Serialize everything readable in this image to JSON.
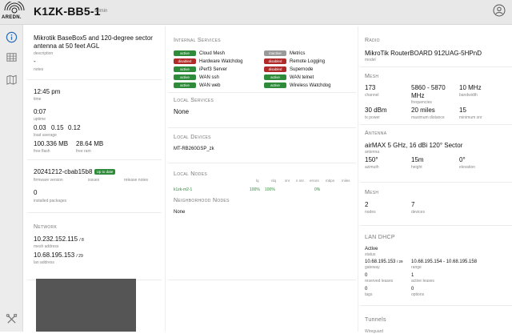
{
  "header": {
    "logo_text": "AREDN.",
    "node_name": "K1ZK-BB5-1",
    "user_role": "admin"
  },
  "sidebar": {
    "icons": [
      "info-icon",
      "grid-icon",
      "map-icon",
      "tools-icon"
    ]
  },
  "general": {
    "description": "Mikrotik BaseBox5 and 120-degree sector antenna at 50 feet AGL",
    "description_label": "description",
    "notes": "-",
    "notes_label": "notes",
    "time": "12:45 pm",
    "time_label": "time",
    "uptime": "0:07",
    "uptime_label": "uptime",
    "load1": "0.03",
    "load5": "0.15",
    "load15": "0.12",
    "load_label": "load average",
    "free_flash": "100.336 MB",
    "free_flash_label": "free flash",
    "free_ram": "28.64 MB",
    "free_ram_label": "free ram",
    "firmware": "20241212-cbab15b8",
    "firmware_badge": "Up to date",
    "firmware_label": "firmware version",
    "issues_label": "issues",
    "release_notes_label": "release notes",
    "packages": "0",
    "packages_label": "installed packages"
  },
  "network": {
    "title": "Network",
    "mesh_ip": "10.232.152.115",
    "mesh_mask": "/ 8",
    "mesh_label": "mesh address",
    "lan_ip": "10.68.195.153",
    "lan_mask": "/ 29",
    "lan_label": "lan address"
  },
  "internal_services": {
    "title": "Internal Services",
    "left": [
      {
        "status": "active",
        "name": "Cloud Mesh"
      },
      {
        "status": "disabled",
        "name": "Hardware Watchdog"
      },
      {
        "status": "active",
        "name": "iPerf3 Server"
      },
      {
        "status": "active",
        "name": "WAN ssh"
      },
      {
        "status": "active",
        "name": "WAN web"
      }
    ],
    "right": [
      {
        "status": "inactive",
        "name": "Metrics"
      },
      {
        "status": "disabled",
        "name": "Remote Logging"
      },
      {
        "status": "disabled",
        "name": "Supernode"
      },
      {
        "status": "active",
        "name": "WAN telnet"
      },
      {
        "status": "active",
        "name": "Wireless Watchdog"
      }
    ]
  },
  "local_services": {
    "title": "Local Services",
    "value": "None"
  },
  "local_devices": {
    "title": "Local Devices",
    "value": "MT-RB260GSP_zk"
  },
  "local_nodes": {
    "title": "Local Nodes",
    "columns": [
      "lq",
      "nlq",
      "snr",
      "n snr",
      "errors",
      "mbps",
      "miles"
    ],
    "row": {
      "name": "k1zk-m2-1",
      "lq": "100%",
      "nlq": "100%",
      "errors": "0%"
    }
  },
  "neighborhood_nodes": {
    "title": "Neighborhood Nodes",
    "value": "None"
  },
  "radio": {
    "title": "Radio",
    "model": "MikroTik RouterBOARD 912UAG-5HPnD",
    "model_label": "model"
  },
  "mesh_radio": {
    "title": "Mesh",
    "channel": "173",
    "channel_label": "channel",
    "frequencies": "5860 - 5870 MHz",
    "frequencies_label": "frequencies",
    "bandwidth": "10 MHz",
    "bandwidth_label": "bandwidth",
    "tx_power": "30 dBm",
    "tx_power_label": "tx power",
    "max_distance": "20 miles",
    "max_distance_label": "maximum distance",
    "min_snr": "15",
    "min_snr_label": "minimum snr"
  },
  "antenna": {
    "title": "Antenna",
    "name": "airMAX 5 GHz, 16 dBi 120° Sector",
    "name_label": "antenna",
    "azimuth": "150°",
    "azimuth_label": "azimuth",
    "height": "15m",
    "height_label": "height",
    "elevation": "0°",
    "elevation_label": "elevation"
  },
  "mesh_counts": {
    "title": "Mesh",
    "nodes": "2",
    "nodes_label": "nodes",
    "devices": "7",
    "devices_label": "devices"
  },
  "lan_dhcp": {
    "title": "LAN DHCP",
    "status": "Active",
    "status_label": "status",
    "gateway": "10.68.195.153",
    "gateway_mask": "/ 29",
    "gateway_label": "gateway",
    "range": "10.68.195.154 - 10.68.195.158",
    "range_label": "range",
    "reserved": "0",
    "reserved_label": "reserved leases",
    "active": "1",
    "active_label": "active leases",
    "tags": "0",
    "tags_label": "tags",
    "options": "0",
    "options_label": "options"
  },
  "tunnels": {
    "title": "Tunnels",
    "partial": "Wireguard"
  },
  "colors": {
    "active": "#2e8b3a",
    "disabled": "#b12a2a",
    "inactive": "#9a9a9a"
  }
}
